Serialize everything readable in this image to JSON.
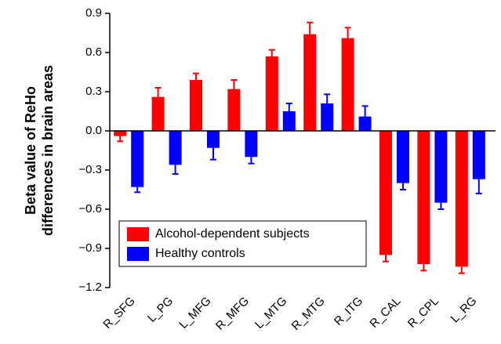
{
  "chart_data": {
    "type": "bar",
    "ylabel": [
      "Beta value of ReHo",
      "differences in brain areas"
    ],
    "categories": [
      "R_SFG",
      "L_PG",
      "L_MFG",
      "R_MFG",
      "L_MTG",
      "R_MTG",
      "R_ITG",
      "R_CAL",
      "R_CPL",
      "L_RG"
    ],
    "series": [
      {
        "name": "Alcohol-dependent subjects",
        "color": "#ff0000",
        "values": [
          -0.04,
          0.26,
          0.39,
          0.32,
          0.57,
          0.74,
          0.71,
          -0.95,
          -1.02,
          -1.04
        ],
        "errors": [
          0.04,
          0.07,
          0.05,
          0.07,
          0.05,
          0.09,
          0.08,
          0.05,
          0.05,
          0.05
        ]
      },
      {
        "name": "Healthy controls",
        "color": "#0000ff",
        "values": [
          -0.43,
          -0.26,
          -0.13,
          -0.2,
          0.15,
          0.21,
          0.11,
          -0.4,
          -0.55,
          -0.37
        ],
        "errors": [
          0.04,
          0.07,
          0.09,
          0.05,
          0.06,
          0.07,
          0.08,
          0.05,
          0.05,
          0.11
        ]
      }
    ],
    "ylim": [
      -1.2,
      0.9
    ],
    "yticks": [
      {
        "value": -1.2,
        "label": "−1.2"
      },
      {
        "value": -0.9,
        "label": "−0.9"
      },
      {
        "value": -0.6,
        "label": "−0.6"
      },
      {
        "value": -0.3,
        "label": "−0.3"
      },
      {
        "value": 0,
        "label": "0.0"
      },
      0.3,
      0.6,
      0.9
    ],
    "legend": "lower-left"
  }
}
